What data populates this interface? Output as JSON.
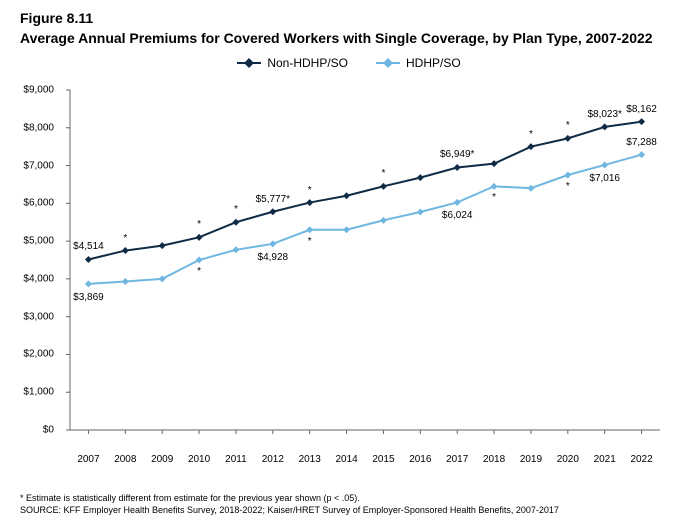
{
  "figure_label": "Figure 8.11",
  "title": "Average Annual Premiums for Covered Workers with Single Coverage, by Plan Type, 2007-2022",
  "legend": {
    "series1": "Non-HDHP/SO",
    "series2": "HDHP/SO"
  },
  "footnote": "* Estimate is statistically different from estimate for the previous year shown (p < .05).",
  "source": "SOURCE: KFF Employer Health Benefits Survey, 2018-2022; Kaiser/HRET Survey of Employer-Sponsored Health Benefits, 2007-2017",
  "chart": {
    "type": "line",
    "background_color": "#ffffff",
    "axis_color": "#666666",
    "tick_color": "#666666",
    "years": [
      2007,
      2008,
      2009,
      2010,
      2011,
      2012,
      2013,
      2014,
      2015,
      2016,
      2017,
      2018,
      2019,
      2020,
      2021,
      2022
    ],
    "ylim": [
      0,
      9000
    ],
    "ytick_step": 1000,
    "ytick_prefix": "$",
    "series": [
      {
        "name": "Non-HDHP/SO",
        "color": "#0f2b46",
        "line_width": 2,
        "marker": "diamond",
        "marker_size": 7,
        "values": [
          4514,
          4750,
          4880,
          5100,
          5500,
          5777,
          6020,
          6200,
          6450,
          6680,
          6949,
          7050,
          7500,
          7720,
          8023,
          8162
        ],
        "labels": [
          {
            "i": 0,
            "text": "$4,514",
            "pos": "above"
          },
          {
            "i": 5,
            "text": "$5,777*",
            "pos": "above"
          },
          {
            "i": 10,
            "text": "$6,949*",
            "pos": "above"
          },
          {
            "i": 14,
            "text": "$8,023*",
            "pos": "above"
          },
          {
            "i": 15,
            "text": "$8,162",
            "pos": "above"
          }
        ],
        "stars": [
          1,
          3,
          4,
          6,
          8,
          12,
          13
        ]
      },
      {
        "name": "HDHP/SO",
        "color": "#6fb7e0",
        "line_width": 2,
        "marker": "diamond",
        "marker_size": 7,
        "values": [
          3869,
          3930,
          4000,
          4500,
          4770,
          4928,
          5300,
          5300,
          5550,
          5770,
          6024,
          6450,
          6400,
          6750,
          7016,
          7288
        ],
        "labels": [
          {
            "i": 0,
            "text": "$3,869",
            "pos": "below"
          },
          {
            "i": 5,
            "text": "$4,928",
            "pos": "below"
          },
          {
            "i": 10,
            "text": "$6,024",
            "pos": "below"
          },
          {
            "i": 14,
            "text": "$7,016",
            "pos": "below"
          },
          {
            "i": 15,
            "text": "$7,288",
            "pos": "above"
          }
        ],
        "stars": [
          3,
          6,
          11,
          13
        ]
      }
    ]
  }
}
